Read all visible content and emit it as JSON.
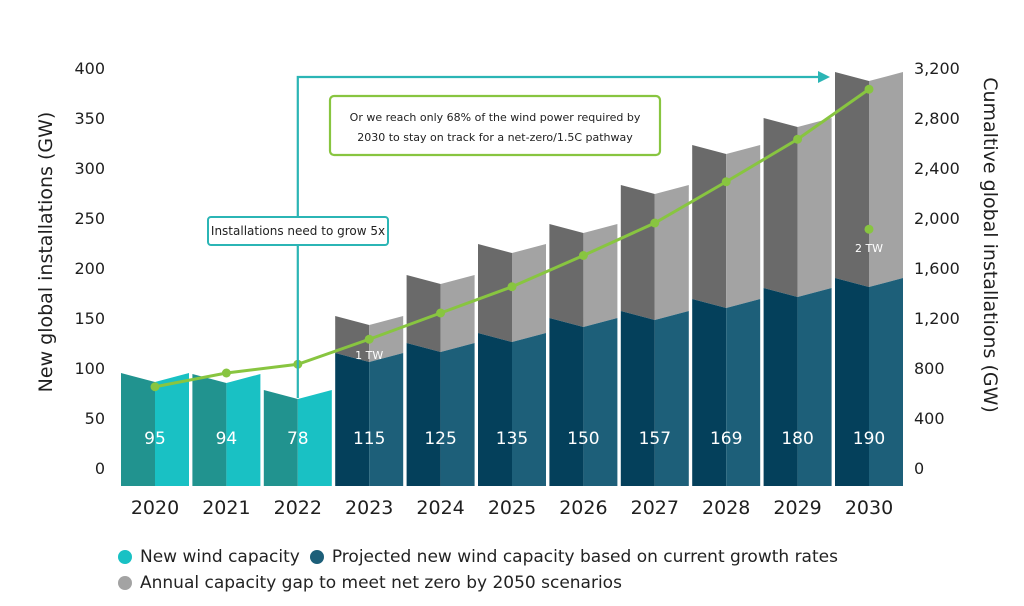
{
  "colors": {
    "actual_light": "#19c1c4",
    "actual_dark": "#21938f",
    "projected_light": "#1d5f79",
    "projected_dark": "#04405b",
    "gap_light": "#a3a3a3",
    "gap_dark": "#6a6a6a",
    "line": "#88c540",
    "callout_teal": "#2bb5b5",
    "callout_green": "#88c540"
  },
  "chart_data": {
    "type": "bar",
    "categories": [
      "2020",
      "2021",
      "2022",
      "2023",
      "2024",
      "2025",
      "2026",
      "2027",
      "2028",
      "2029",
      "2030"
    ],
    "series": [
      {
        "name": "New wind capacity",
        "values": [
          95,
          94,
          78,
          null,
          null,
          null,
          null,
          null,
          null,
          null,
          null
        ]
      },
      {
        "name": "Projected new wind capacity based on current growth rates",
        "values": [
          null,
          null,
          null,
          115,
          125,
          135,
          150,
          157,
          169,
          180,
          190
        ]
      },
      {
        "name": "Annual capacity gap to meet net zero by 2050 scenarios",
        "values": [
          0,
          0,
          0,
          37,
          68,
          89,
          94,
          126,
          154,
          170,
          206
        ]
      },
      {
        "name": "Cumulative global installations",
        "axis": "right",
        "values": [
          650,
          760,
          830,
          1030,
          1240,
          1450,
          1700,
          1960,
          2290,
          2630,
          3030
        ]
      }
    ],
    "bar_labels": [
      "95",
      "94",
      "78",
      "115",
      "125",
      "135",
      "150",
      "157",
      "169",
      "180",
      "190"
    ],
    "y_left": {
      "label": "New global installations (GW)",
      "ticks": [
        "0",
        "50",
        "100",
        "150",
        "200",
        "250",
        "300",
        "350",
        "400"
      ],
      "lim": [
        0,
        400
      ]
    },
    "y_right": {
      "label": "Cumaltive global installations (GW)",
      "ticks": [
        "0",
        "400",
        "800",
        "1,200",
        "1,600",
        "2,000",
        "2,400",
        "2,800",
        "3,200"
      ],
      "lim": [
        0,
        3200
      ]
    },
    "annotations": {
      "tw_1": "1 TW",
      "tw_2": "2 TW",
      "callout_grow": "Installations need to grow 5x",
      "callout_reach_line1": "Or we reach only 68% of the wind power required by",
      "callout_reach_line2": "2030 to stay on track for a net-zero/1.5C pathway"
    },
    "legend": {
      "item1": "New wind capacity",
      "item2": "Projected new wind capacity based on current growth rates",
      "item3": "Annual capacity gap to meet net zero by 2050 scenarios",
      "placement": "bottom"
    }
  }
}
